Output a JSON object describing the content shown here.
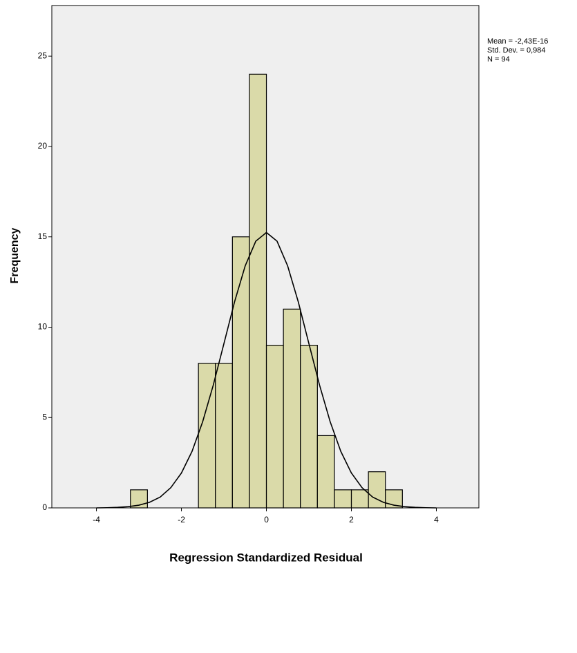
{
  "chart_data": {
    "type": "histogram",
    "x_label": "Regression Standardized Residual",
    "y_label": "Frequency",
    "annotations": [
      "Mean = -2,43E-16",
      "Std. Dev. = 0,984",
      "N = 94"
    ],
    "bins": [
      -3.2,
      -2.8,
      -2.4,
      -2.0,
      -1.6,
      -1.2,
      -0.8,
      -0.4,
      0,
      0.4,
      0.8,
      1.2,
      1.6,
      2.0,
      2.4,
      2.8,
      3.2
    ],
    "counts": [
      1,
      0,
      0,
      0,
      8,
      8,
      15,
      24,
      9,
      11,
      9,
      4,
      1,
      1,
      2,
      1
    ],
    "color": "#d6d69c",
    "curve": {
      "x": [
        -4,
        -3.75,
        -3.5,
        -3.25,
        -3,
        -2.75,
        -2.5,
        -2.25,
        -2,
        -1.75,
        -1.5,
        -1.25,
        -1,
        -0.75,
        -0.5,
        -0.25,
        0,
        0.25,
        0.5,
        0.75,
        1,
        1.25,
        1.5,
        1.75,
        2,
        2.25,
        2.5,
        2.75,
        3,
        3.25,
        3.5,
        3.75,
        4
      ],
      "y": [
        0,
        0.01,
        0.03,
        0.07,
        0.15,
        0.31,
        0.6,
        1.12,
        1.93,
        3.13,
        4.77,
        6.8,
        9.09,
        11.4,
        13.39,
        14.76,
        15.24,
        14.76,
        13.39,
        11.4,
        9.09,
        6.8,
        4.77,
        3.13,
        1.93,
        1.12,
        0.6,
        0.31,
        0.15,
        0.07,
        0.03,
        0.01,
        0
      ]
    },
    "xlim": [
      -5.05,
      5.0
    ],
    "ylim": [
      0,
      27.8
    ],
    "xticks": [
      -4,
      -2,
      0,
      2,
      4
    ],
    "yticks": [
      0,
      5,
      10,
      15,
      20,
      25
    ]
  }
}
